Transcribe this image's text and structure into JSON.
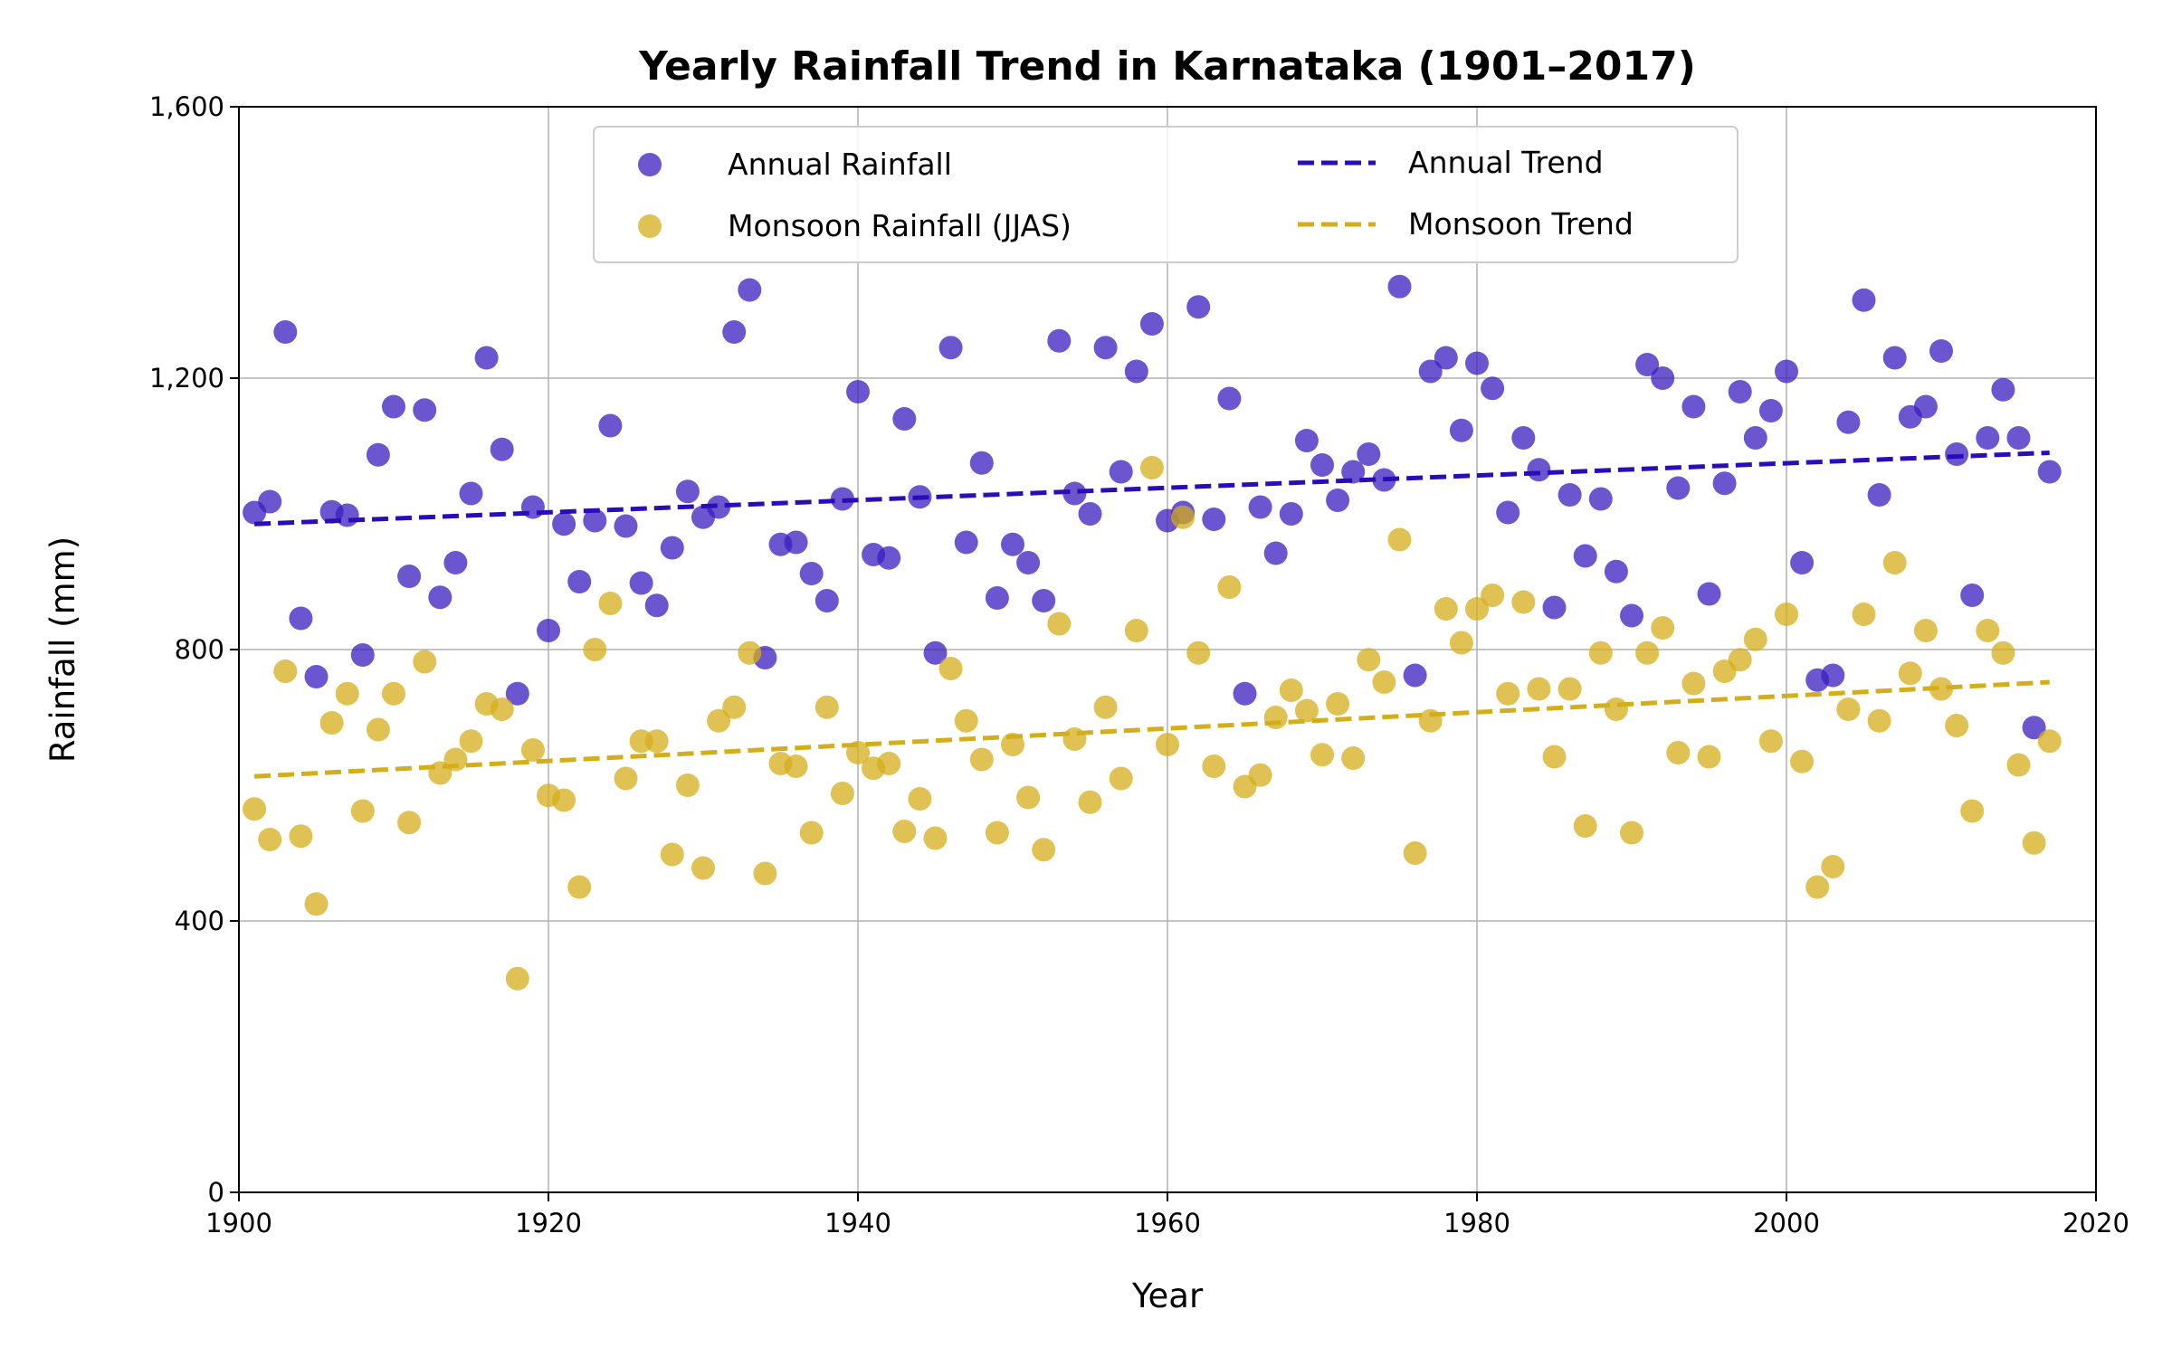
{
  "chart_data": {
    "type": "scatter",
    "title": "Yearly Rainfall Trend in Karnataka (1901–2017)",
    "xlabel": "Year",
    "ylabel": "Rainfall (mm)",
    "xlim": [
      1900,
      2020
    ],
    "ylim": [
      0,
      1600
    ],
    "xticks": [
      1900,
      1920,
      1940,
      1960,
      1980,
      2000,
      2020
    ],
    "yticks": [
      0,
      400,
      800,
      1200,
      1600
    ],
    "xtick_labels": [
      "1900",
      "1920",
      "1940",
      "1960",
      "1980",
      "2000",
      "2020"
    ],
    "ytick_labels": [
      "0",
      "400",
      "800",
      "1,200",
      "1,600"
    ],
    "grid": true,
    "legend_position": "top-center",
    "x": [
      1901,
      1902,
      1903,
      1904,
      1905,
      1906,
      1907,
      1908,
      1909,
      1910,
      1911,
      1912,
      1913,
      1914,
      1915,
      1916,
      1917,
      1918,
      1919,
      1920,
      1921,
      1922,
      1923,
      1924,
      1925,
      1926,
      1927,
      1928,
      1929,
      1930,
      1931,
      1932,
      1933,
      1934,
      1935,
      1936,
      1937,
      1938,
      1939,
      1940,
      1941,
      1942,
      1943,
      1944,
      1945,
      1946,
      1947,
      1948,
      1949,
      1950,
      1951,
      1952,
      1953,
      1954,
      1955,
      1956,
      1957,
      1958,
      1959,
      1960,
      1961,
      1962,
      1963,
      1964,
      1965,
      1966,
      1967,
      1968,
      1969,
      1970,
      1971,
      1972,
      1973,
      1974,
      1975,
      1976,
      1977,
      1978,
      1979,
      1980,
      1981,
      1982,
      1983,
      1984,
      1985,
      1986,
      1987,
      1988,
      1989,
      1990,
      1991,
      1992,
      1993,
      1994,
      1995,
      1996,
      1997,
      1998,
      1999,
      2000,
      2001,
      2002,
      2003,
      2004,
      2005,
      2006,
      2007,
      2008,
      2009,
      2010,
      2011,
      2012,
      2013,
      2014,
      2015,
      2016,
      2017
    ],
    "series": [
      {
        "name": "Annual Rainfall",
        "kind": "scatter",
        "color": "#3a1ec0",
        "values": [
          1002,
          1018,
          1268,
          846,
          760,
          1003,
          998,
          792,
          1087,
          1158,
          908,
          1153,
          877,
          928,
          1030,
          1230,
          1095,
          735,
          1010,
          828,
          985,
          900,
          990,
          1130,
          982,
          898,
          865,
          950,
          1033,
          995,
          1010,
          1268,
          1330,
          788,
          955,
          958,
          912,
          872,
          1022,
          1180,
          940,
          935,
          1140,
          1025,
          795,
          1245,
          958,
          1075,
          876,
          955,
          928,
          872,
          1255,
          1030,
          1000,
          1245,
          1062,
          1210,
          1280,
          990,
          1002,
          1305,
          992,
          1170,
          735,
          1010,
          942,
          1000,
          1108,
          1072,
          1020,
          1062,
          1088,
          1050,
          1335,
          762,
          1210,
          1230,
          1123,
          1222,
          1185,
          1002,
          1112,
          1065,
          862,
          1028,
          938,
          1022,
          915,
          850,
          1220,
          1200,
          1038,
          1158,
          882,
          1045,
          1180,
          1112,
          1152,
          1210,
          928,
          755,
          762,
          1135,
          1315,
          1028,
          1230,
          1143,
          1158,
          1240,
          1088,
          880,
          1112,
          1183,
          1112,
          685,
          1062
        ]
      },
      {
        "name": "Monsoon Rainfall (JJAS)",
        "kind": "scatter",
        "color": "#d4ae1a",
        "values": [
          565,
          520,
          768,
          525,
          425,
          692,
          735,
          562,
          682,
          735,
          545,
          782,
          618,
          638,
          665,
          720,
          712,
          315,
          652,
          585,
          578,
          450,
          800,
          868,
          610,
          665,
          665,
          498,
          600,
          478,
          695,
          715,
          795,
          470,
          632,
          628,
          530,
          715,
          588,
          648,
          625,
          632,
          532,
          580,
          522,
          772,
          695,
          638,
          530,
          660,
          582,
          505,
          838,
          668,
          575,
          715,
          610,
          828,
          1068,
          660,
          995,
          795,
          628,
          892,
          598,
          615,
          700,
          740,
          710,
          645,
          720,
          640,
          785,
          752,
          962,
          500,
          695,
          860,
          810,
          860,
          880,
          735,
          870,
          742,
          642,
          742,
          540,
          795,
          712,
          530,
          795,
          832,
          648,
          750,
          642,
          768,
          785,
          815,
          665,
          852,
          635,
          450,
          480,
          712,
          852,
          695,
          928,
          765,
          828,
          742,
          688,
          562,
          828,
          795,
          630,
          515,
          665
        ]
      },
      {
        "name": "Annual Trend",
        "kind": "trend",
        "color": "#2a0cb8",
        "x": [
          1901,
          2017
        ],
        "values": [
          985,
          1090
        ]
      },
      {
        "name": "Monsoon Trend",
        "kind": "trend",
        "color": "#d4ae1a",
        "x": [
          1901,
          2017
        ],
        "values": [
          613,
          752
        ]
      }
    ]
  }
}
